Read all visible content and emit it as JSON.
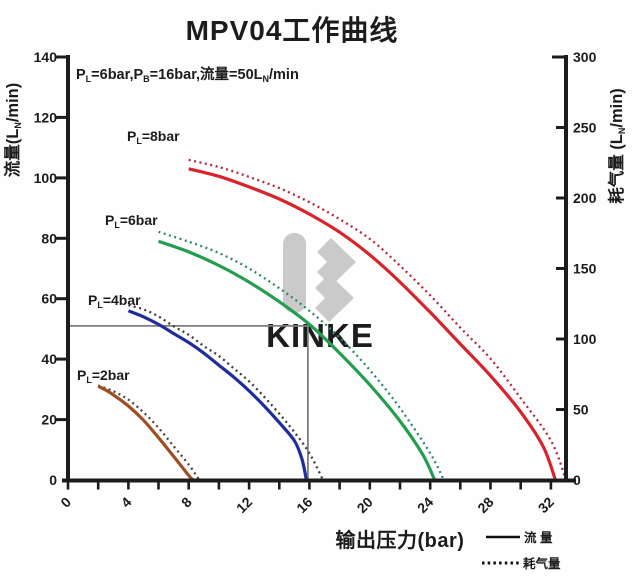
{
  "title": "MPV04工作曲线",
  "annotation": {
    "p0": "P",
    "s0": "L",
    "p1": "=6bar,P",
    "s1": "B",
    "p2": "=16bar,流量=50L",
    "s2": "N",
    "p3": "/min"
  },
  "axis_labels": {
    "x": "输出压力(bar)",
    "y_left": {
      "p0": "流量(L",
      "s0": "N",
      "p1": "/min)"
    },
    "y_right": {
      "p0": "耗气量 (L",
      "s0": "N",
      "p1": "/min)"
    }
  },
  "curve_labels": {
    "pl8": {
      "p0": "P",
      "s0": "L",
      "p1": "=8bar"
    },
    "pl6": {
      "p0": "P",
      "s0": "L",
      "p1": "=6bar"
    },
    "pl4": {
      "p0": "P",
      "s0": "L",
      "p1": "=4bar"
    },
    "pl2": {
      "p0": "P",
      "s0": "L",
      "p1": "=2bar"
    }
  },
  "legend": {
    "flow_label": "流 量",
    "consumption_label": "耗气量"
  },
  "watermark": {
    "text": "KINKE",
    "color": "#c8c8c8"
  },
  "colors": {
    "axis": "#1c1c1c",
    "reference_line": "#7e7e7e",
    "red": "#d8232a",
    "red_dotted": "#b2273d",
    "green": "#229e4e",
    "green_dotted": "#2e8577",
    "blue": "#1e2d9b",
    "blue_dotted": "#3d3d3d",
    "brown": "#9e4f22",
    "brown_dotted": "#57423a"
  },
  "chart_data": {
    "type": "line",
    "title": "MPV04工作曲线",
    "subtitle_annotation": "PL=6bar,PB=16bar,流量=50LN/min",
    "xlabel": "输出压力(bar)",
    "ylabel_left": "流量(LN/min)",
    "ylabel_right": "耗气量 (LN/min)",
    "x_range": [
      0,
      33
    ],
    "x_ticks_major": [
      0,
      4,
      8,
      12,
      16,
      20,
      24,
      28,
      32
    ],
    "x_tick_minor_step": 2,
    "y_left_range": [
      0,
      140
    ],
    "y_left_ticks": [
      0,
      20,
      40,
      60,
      80,
      100,
      120,
      140
    ],
    "y_right_range": [
      0,
      300
    ],
    "y_right_ticks": [
      0,
      50,
      100,
      150,
      200,
      250,
      300
    ],
    "grid": false,
    "legend_position": "bottom-right",
    "reference": {
      "pressure_bar": 15.9,
      "flow": 51
    },
    "series": [
      {
        "name": "P_L=8bar 耗气量",
        "axis": "right",
        "style": "dotted",
        "color": "#b2273d",
        "points": [
          [
            8,
            227
          ],
          [
            10,
            222
          ],
          [
            12,
            215
          ],
          [
            14,
            207
          ],
          [
            16,
            197
          ],
          [
            18,
            185
          ],
          [
            20,
            171
          ],
          [
            22,
            152
          ],
          [
            24,
            131
          ],
          [
            26,
            108
          ],
          [
            28,
            86
          ],
          [
            30,
            58
          ],
          [
            32,
            28
          ],
          [
            33,
            0
          ]
        ]
      },
      {
        "name": "P_L=6bar 耗气量",
        "axis": "right",
        "style": "dotted",
        "color": "#2e8577",
        "points": [
          [
            6,
            176
          ],
          [
            8,
            169
          ],
          [
            10,
            161
          ],
          [
            12,
            150
          ],
          [
            14,
            136
          ],
          [
            16,
            120
          ],
          [
            18,
            101
          ],
          [
            20,
            78
          ],
          [
            22,
            51
          ],
          [
            24,
            19
          ],
          [
            24.9,
            0
          ]
        ]
      },
      {
        "name": "P_L=4bar 耗气量",
        "axis": "right",
        "style": "dotted",
        "color": "#3d3d3d",
        "points": [
          [
            4,
            124
          ],
          [
            5,
            121
          ],
          [
            6,
            116
          ],
          [
            7,
            109
          ],
          [
            8,
            103
          ],
          [
            9,
            95
          ],
          [
            10,
            88
          ],
          [
            11,
            79
          ],
          [
            12,
            70
          ],
          [
            13,
            59
          ],
          [
            14,
            47
          ],
          [
            15,
            34
          ],
          [
            16,
            19
          ],
          [
            16.9,
            0
          ]
        ]
      },
      {
        "name": "P_L=2bar 耗气量",
        "axis": "right",
        "style": "dotted",
        "color": "#57423a",
        "points": [
          [
            2,
            67
          ],
          [
            3,
            63
          ],
          [
            4,
            57
          ],
          [
            5,
            48
          ],
          [
            6,
            37
          ],
          [
            7,
            24
          ],
          [
            8,
            11
          ],
          [
            8.7,
            0
          ]
        ]
      },
      {
        "name": "P_L=8bar 流量",
        "axis": "left",
        "style": "solid",
        "color": "#d8232a",
        "points": [
          [
            8,
            103
          ],
          [
            10,
            100.5
          ],
          [
            12,
            97
          ],
          [
            14,
            93
          ],
          [
            16,
            88
          ],
          [
            18,
            82
          ],
          [
            20,
            74.5
          ],
          [
            22,
            65.5
          ],
          [
            24,
            55.5
          ],
          [
            26,
            45
          ],
          [
            28,
            34.5
          ],
          [
            30,
            22.5
          ],
          [
            31.5,
            11
          ],
          [
            32.3,
            0
          ]
        ]
      },
      {
        "name": "P_L=6bar 流量",
        "axis": "left",
        "style": "solid",
        "color": "#229e4e",
        "points": [
          [
            6,
            79
          ],
          [
            8,
            75.5
          ],
          [
            10,
            71
          ],
          [
            12,
            65.5
          ],
          [
            14,
            59
          ],
          [
            16,
            51.5
          ],
          [
            18,
            42
          ],
          [
            20,
            31.5
          ],
          [
            22,
            19.5
          ],
          [
            23.5,
            8.5
          ],
          [
            24.3,
            0
          ]
        ]
      },
      {
        "name": "P_L=4bar 流量",
        "axis": "left",
        "style": "solid",
        "color": "#1e2d9b",
        "points": [
          [
            4,
            56
          ],
          [
            5,
            54
          ],
          [
            6,
            51.5
          ],
          [
            7,
            48.5
          ],
          [
            8,
            45.5
          ],
          [
            9,
            42
          ],
          [
            10,
            38
          ],
          [
            11,
            34
          ],
          [
            12,
            29.5
          ],
          [
            13,
            24.5
          ],
          [
            14,
            19
          ],
          [
            15,
            13
          ],
          [
            15.5,
            7
          ],
          [
            15.8,
            0
          ]
        ]
      },
      {
        "name": "P_L=2bar 流量",
        "axis": "left",
        "style": "solid",
        "color": "#9e4f22",
        "points": [
          [
            2,
            31
          ],
          [
            2.5,
            29.8
          ],
          [
            3,
            28.2
          ],
          [
            4,
            24.5
          ],
          [
            5,
            19.8
          ],
          [
            6,
            14
          ],
          [
            7,
            7.8
          ],
          [
            8,
            1.5
          ],
          [
            8.3,
            0
          ]
        ]
      }
    ]
  }
}
